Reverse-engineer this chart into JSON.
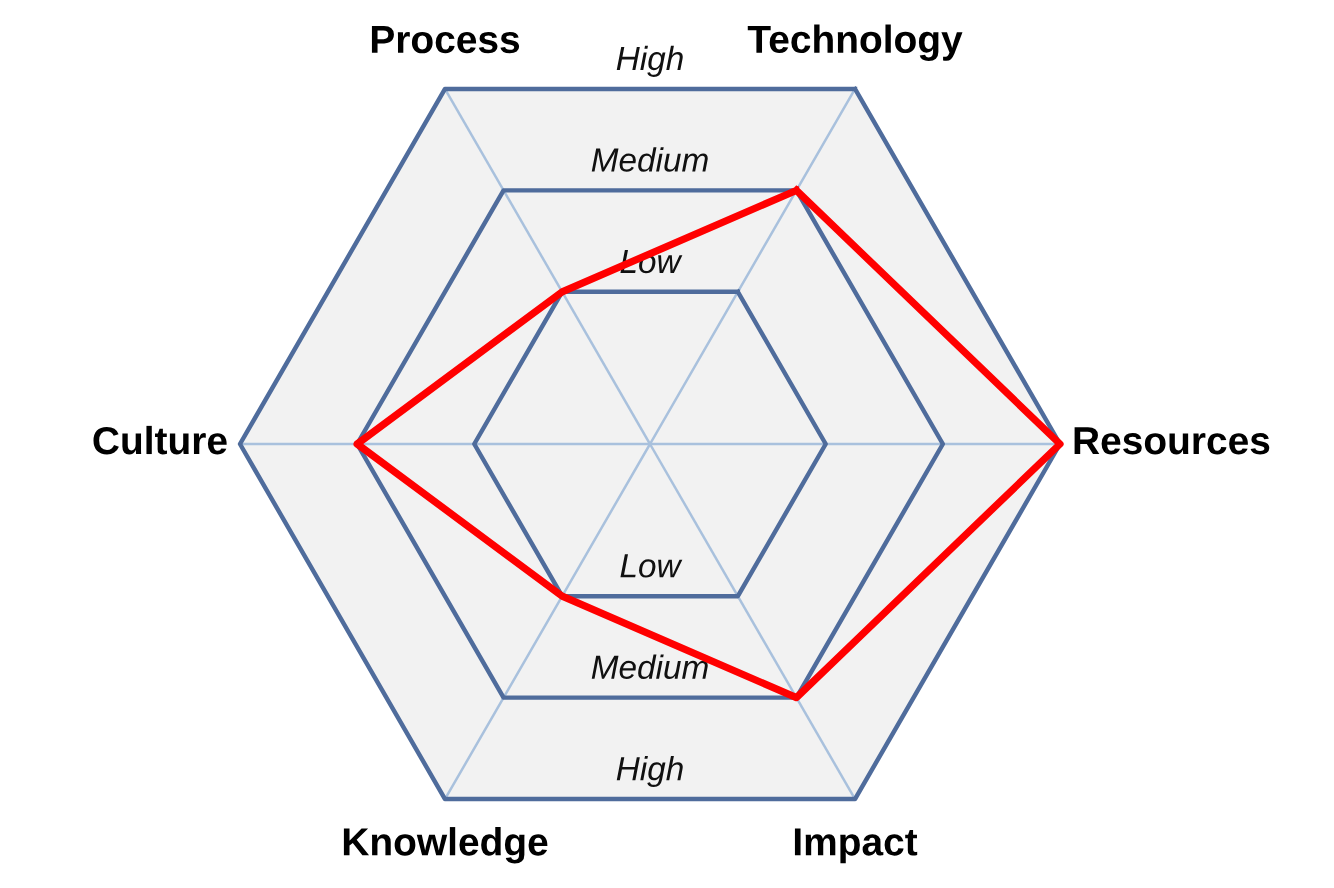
{
  "chart_data": {
    "type": "radar",
    "categories": [
      "Technology",
      "Resources",
      "Impact",
      "Knowledge",
      "Culture",
      "Process"
    ],
    "ylim": [
      -0.5,
      3
    ],
    "yticks": [
      {
        "value": 1,
        "label": "Low"
      },
      {
        "value": 2,
        "label": "Medium"
      },
      {
        "value": 3,
        "label": "High"
      }
    ],
    "grid": true,
    "series": [
      {
        "color": "#ff0000",
        "values": [
          2,
          3,
          2,
          1,
          2,
          1
        ]
      }
    ]
  }
}
